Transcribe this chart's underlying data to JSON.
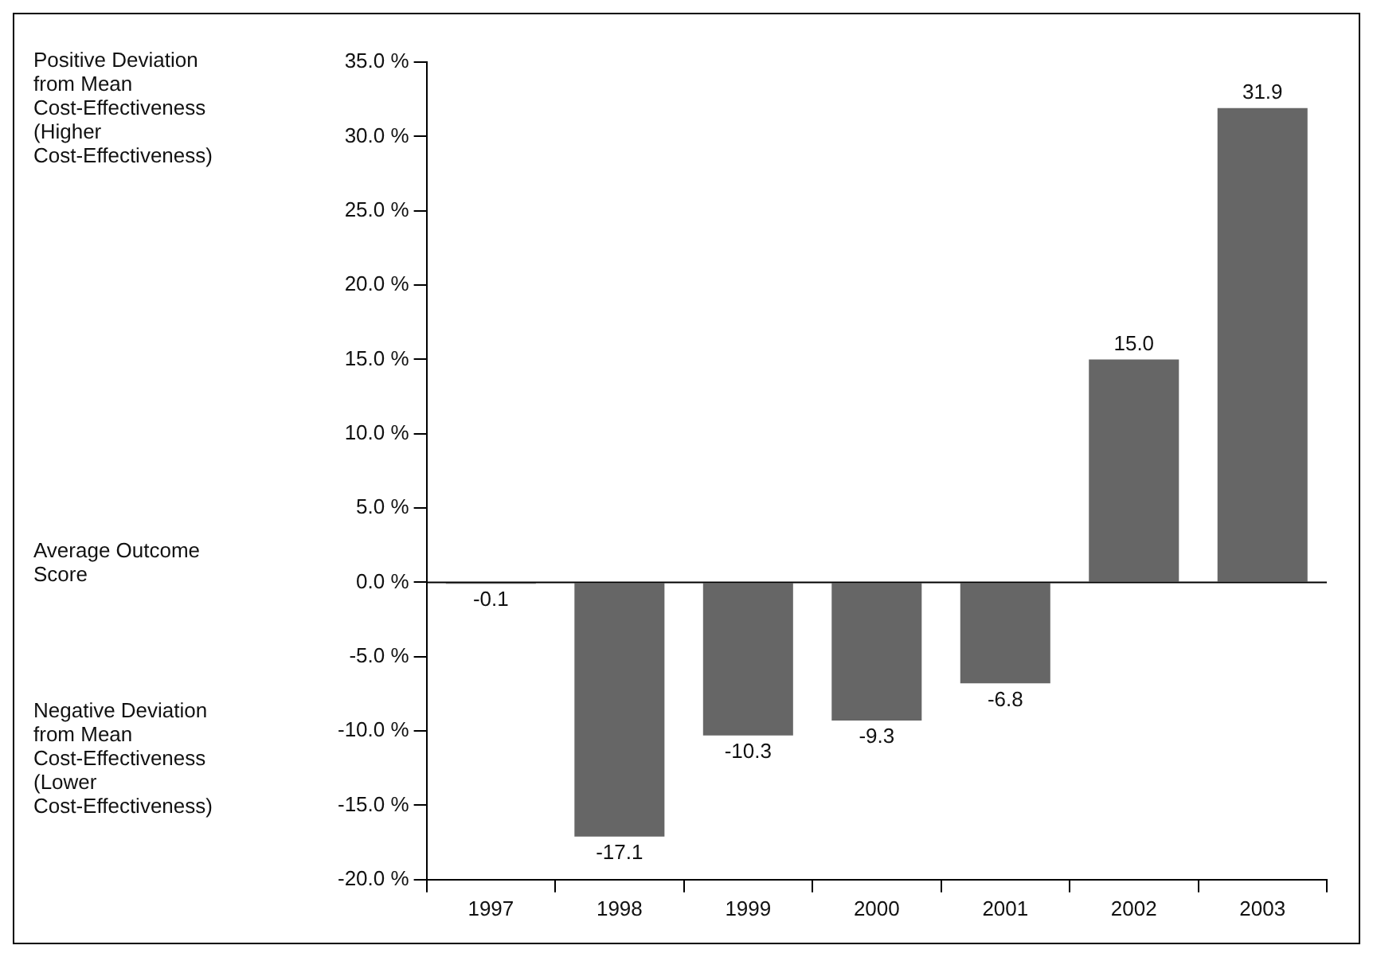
{
  "chart_data": {
    "type": "bar",
    "categories": [
      "1997",
      "1998",
      "1999",
      "2000",
      "2001",
      "2002",
      "2003"
    ],
    "values": [
      -0.1,
      -17.1,
      -10.3,
      -9.3,
      -6.8,
      15.0,
      31.9
    ],
    "value_labels": [
      "-0.1",
      "-17.1",
      "-10.3",
      "-9.3",
      "-6.8",
      "15.0",
      "31.9"
    ],
    "color": "#666666",
    "ylim": [
      -20,
      35
    ],
    "yticks": [
      {
        "value": -20,
        "label": "-20.0 %"
      },
      {
        "value": -15,
        "label": "-15.0 %"
      },
      {
        "value": -10,
        "label": "-10.0 %"
      },
      {
        "value": -5,
        "label": "-5.0 %"
      },
      {
        "value": 0,
        "label": "0.0 %"
      },
      {
        "value": 5,
        "label": "5.0 %"
      },
      {
        "value": 10,
        "label": "10.0 %"
      },
      {
        "value": 15,
        "label": "15.0 %"
      },
      {
        "value": 20,
        "label": "20.0 %"
      },
      {
        "value": 25,
        "label": "25.0 %"
      },
      {
        "value": 30,
        "label": "30.0 %"
      },
      {
        "value": 35,
        "label": "35.0 %"
      }
    ],
    "annotations": [
      "Positive Deviation from Mean Cost-Effectiveness (Higher Cost-Effectiveness)",
      "Average Outcome Score",
      "Negative Deviation from Mean Cost-Effectiveness (Lower Cost-Effectiveness)"
    ],
    "legend": false
  }
}
